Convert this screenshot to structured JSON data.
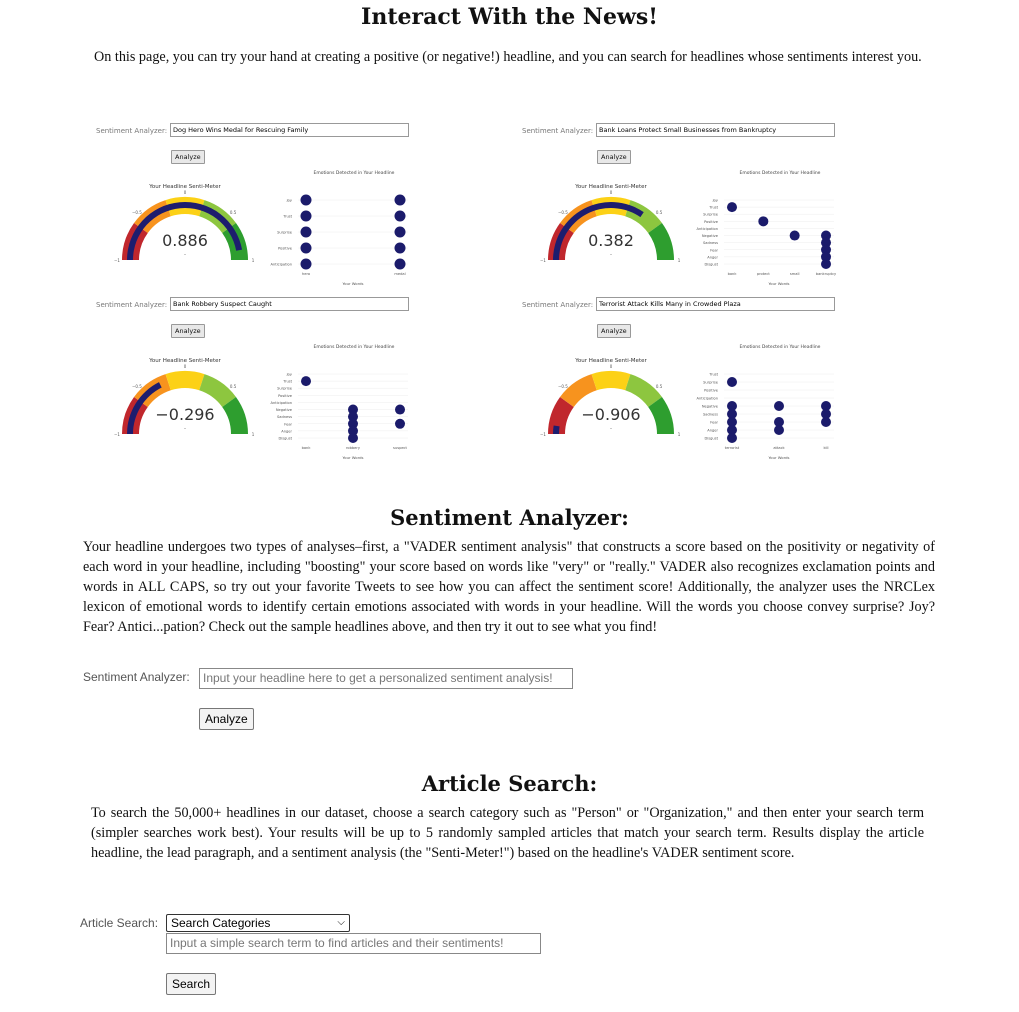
{
  "page": {
    "title": "Interact With the News!",
    "intro": "On this page, you can try your hand at creating a positive (or negative!) headline, and you can search for headlines whose sentiments interest you."
  },
  "samples": [
    {
      "label": "Sentiment Analyzer:",
      "headline": "Dog Hero Wins Medal for Rescuing Family",
      "button": "Analyze",
      "gauge_title": "Your Headline Senti-Meter",
      "score": 0.886,
      "score_text": "0.886",
      "emotion_title": "Emotions Detected in Your Headline",
      "x_title": "Your Words",
      "emotions": [
        "Joy",
        "Trust",
        "Surprise",
        "Positive",
        "Anticipation"
      ],
      "words": [
        "hero",
        "medal"
      ],
      "dots": [
        [
          0,
          0
        ],
        [
          0,
          1
        ],
        [
          0,
          2
        ],
        [
          0,
          3
        ],
        [
          0,
          4
        ],
        [
          1,
          0
        ],
        [
          1,
          1
        ],
        [
          1,
          2
        ],
        [
          1,
          3
        ],
        [
          1,
          4
        ]
      ]
    },
    {
      "label": "Sentiment Analyzer:",
      "headline": "Bank Loans Protect Small Businesses from Bankruptcy",
      "button": "Analyze",
      "gauge_title": "Your Headline Senti-Meter",
      "score": 0.382,
      "score_text": "0.382",
      "emotion_title": "Emotions Detected in Your Headline",
      "x_title": "Your Words",
      "emotions": [
        "Joy",
        "Trust",
        "Surprise",
        "Positive",
        "Anticipation",
        "Negative",
        "Sadness",
        "Fear",
        "Anger",
        "Disgust"
      ],
      "words": [
        "bank",
        "protect",
        "small",
        "bankruptcy"
      ],
      "dots": [
        [
          0,
          1
        ],
        [
          1,
          3
        ],
        [
          2,
          5
        ],
        [
          3,
          5
        ],
        [
          3,
          6
        ],
        [
          3,
          7
        ],
        [
          3,
          8
        ],
        [
          3,
          9
        ]
      ]
    },
    {
      "label": "Sentiment Analyzer:",
      "headline": "Bank Robbery Suspect Caught",
      "button": "Analyze",
      "gauge_title": "Your Headline Senti-Meter",
      "score": -0.296,
      "score_text": "−0.296",
      "emotion_title": "Emotions Detected in Your Headline",
      "x_title": "Your Words",
      "emotions": [
        "Joy",
        "Trust",
        "Surprise",
        "Positive",
        "Anticipation",
        "Negative",
        "Sadness",
        "Fear",
        "Anger",
        "Disgust"
      ],
      "words": [
        "bank",
        "robbery",
        "suspect"
      ],
      "dots": [
        [
          0,
          1
        ],
        [
          1,
          5
        ],
        [
          1,
          6
        ],
        [
          1,
          7
        ],
        [
          1,
          8
        ],
        [
          1,
          9
        ],
        [
          2,
          5
        ],
        [
          2,
          7
        ]
      ]
    },
    {
      "label": "Sentiment Analyzer:",
      "headline": "Terrorist Attack Kills Many in Crowded Plaza",
      "button": "Analyze",
      "gauge_title": "Your Headline Senti-Meter",
      "score": -0.906,
      "score_text": "−0.906",
      "emotion_title": "Emotions Detected in Your Headline",
      "x_title": "Your Words",
      "emotions": [
        "Trust",
        "Surprise",
        "Positive",
        "Anticipation",
        "Negative",
        "Sadness",
        "Fear",
        "Anger",
        "Disgust"
      ],
      "words": [
        "terrorist",
        "attack",
        "kill"
      ],
      "dots": [
        [
          0,
          1
        ],
        [
          0,
          4
        ],
        [
          0,
          5
        ],
        [
          0,
          6
        ],
        [
          0,
          7
        ],
        [
          0,
          8
        ],
        [
          1,
          4
        ],
        [
          1,
          6
        ],
        [
          1,
          7
        ],
        [
          2,
          4
        ],
        [
          2,
          5
        ],
        [
          2,
          6
        ]
      ]
    }
  ],
  "gauge": {
    "tick_neg1": "−1",
    "tick_neg05": "−0.5",
    "tick_0": "0",
    "tick_05": "0.5",
    "tick_1": "1",
    "band_colors": [
      "#c0272d",
      "#f7931e",
      "#fcd116",
      "#8dc63f",
      "#2e9e2f"
    ],
    "bar_color": "#1d1d6e",
    "dot_color": "#1b1b6b"
  },
  "analyzer": {
    "heading": "Sentiment Analyzer:",
    "description": "Your headline undergoes two types of analyses–first, a \"VADER sentiment analysis\" that constructs a score based on the positivity or negativity of each word in your headline, including \"boosting\" your score based on words like \"very\" or \"really.\" VADER also recognizes exclamation points and words in ALL CAPS, so try out your favorite Tweets to see how you can affect the sentiment score! Additionally, the analyzer uses the NRCLex lexicon of emotional words to identify certain emotions associated with words in your headline. Will the words you choose convey surprise? Joy? Fear? Antici...pation? Check out the sample headlines above, and then try it out to see what you find!",
    "label": "Sentiment Analyzer:",
    "placeholder": "Input your headline here to get a personalized sentiment analysis!",
    "button": "Analyze"
  },
  "search": {
    "heading": "Article Search:",
    "description": "To search the 50,000+ headlines in our dataset, choose a search category such as \"Person\" or \"Organization,\" and then enter your search term (simpler searches work best). Your results will be up to 5 randomly sampled articles that match your search term. Results display the article headline, the lead paragraph, and a sentiment analysis (the \"Senti-Meter!\") based on the headline's VADER sentiment score.",
    "label": "Article Search:",
    "category_selected": "Search Categories",
    "placeholder": "Input a simple search term to find articles and their sentiments!",
    "button": "Search"
  }
}
